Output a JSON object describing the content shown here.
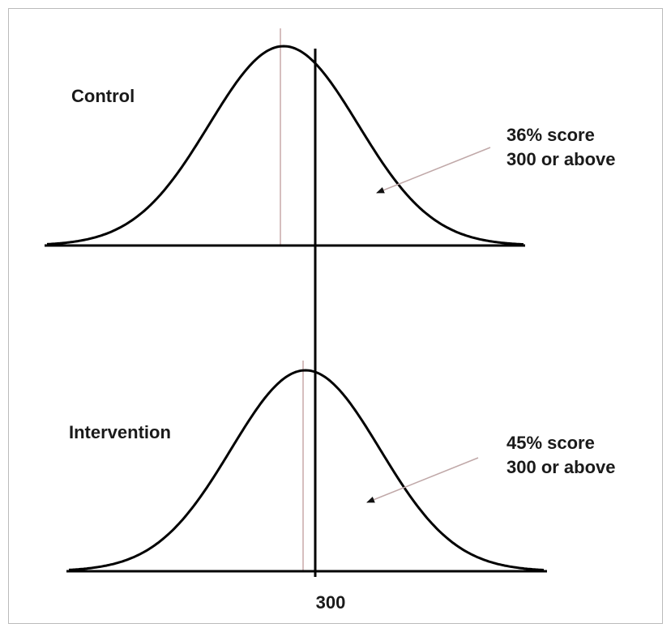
{
  "panels": [
    {
      "label": "Control",
      "annotation": [
        "36% score",
        "300 or above"
      ]
    },
    {
      "label": "Intervention",
      "annotation": [
        "45% score",
        "300 or above"
      ]
    }
  ],
  "threshold_label": "300"
}
